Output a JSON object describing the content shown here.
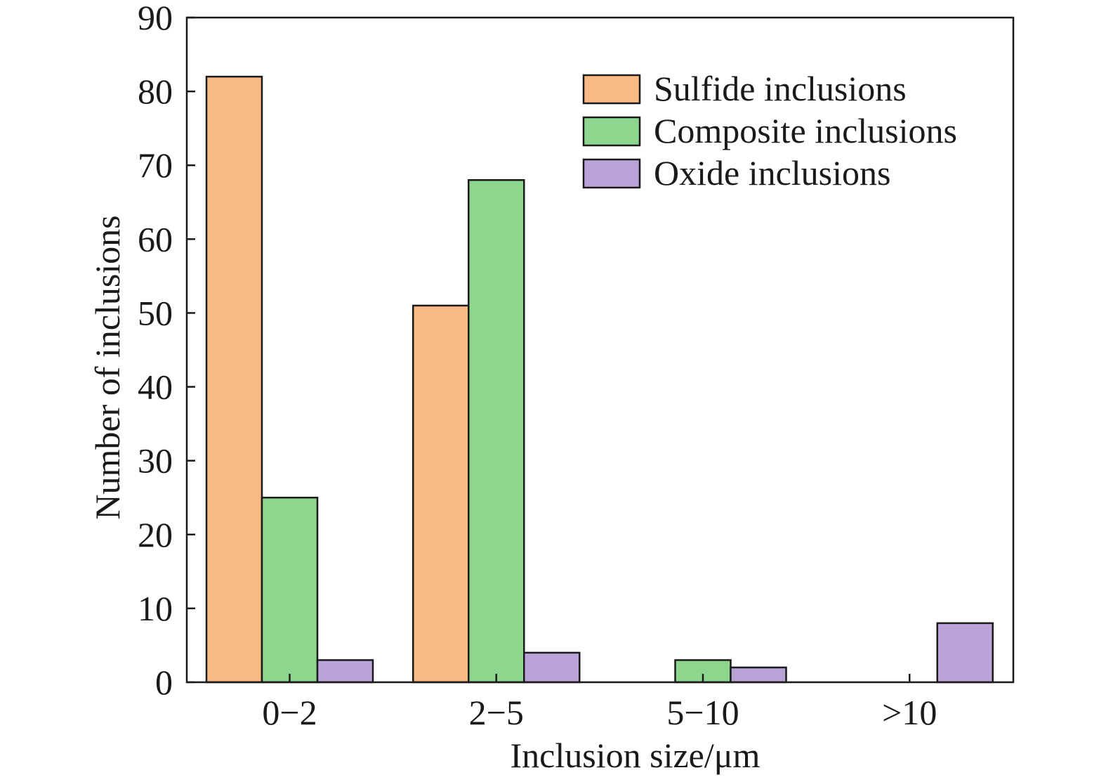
{
  "chart_data": {
    "type": "bar",
    "categories": [
      "0−2",
      "2−5",
      "5−10",
      ">10"
    ],
    "series": [
      {
        "name": "Sulfide inclusions",
        "color": "#F7BA84",
        "values": [
          82,
          51,
          0,
          0
        ]
      },
      {
        "name": "Composite inclusions",
        "color": "#8ED68E",
        "values": [
          25,
          68,
          3,
          0
        ]
      },
      {
        "name": "Oxide inclusions",
        "color": "#B9A3D8",
        "values": [
          3,
          4,
          2,
          8
        ]
      }
    ],
    "xlabel": "Inclusion size/μm",
    "ylabel": "Number of inclusions",
    "ylim": [
      0,
      90
    ],
    "yticks": [
      0,
      10,
      20,
      30,
      40,
      50,
      60,
      70,
      80,
      90
    ],
    "legend_position": "top-right",
    "grid": false
  }
}
